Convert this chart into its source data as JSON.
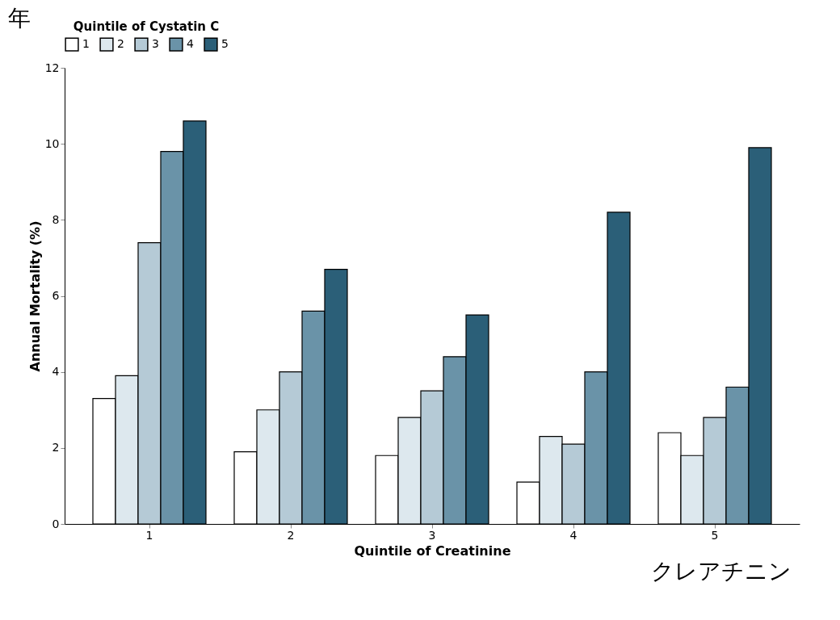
{
  "chart_data": {
    "type": "bar",
    "xlabel": "Quintile of Creatinine",
    "ylabel": "Annual Mortality (%)",
    "legend_title": "Quintile of Cystatin C",
    "legend": "top",
    "grid": false,
    "categories": [
      "1",
      "2",
      "3",
      "4",
      "5"
    ],
    "series": [
      {
        "name": "1",
        "color": "#ffffff",
        "values": [
          3.3,
          1.9,
          1.8,
          1.1,
          2.4
        ]
      },
      {
        "name": "2",
        "color": "#dde8ee",
        "values": [
          3.9,
          3.0,
          2.8,
          2.3,
          1.8
        ]
      },
      {
        "name": "3",
        "color": "#b5cad6",
        "values": [
          7.4,
          4.0,
          3.5,
          2.1,
          2.8
        ]
      },
      {
        "name": "4",
        "color": "#6a93a8",
        "values": [
          9.8,
          5.6,
          4.4,
          4.0,
          3.6
        ]
      },
      {
        "name": "5",
        "color": "#2b5f78",
        "values": [
          10.6,
          6.7,
          5.5,
          8.2,
          9.9
        ]
      }
    ],
    "ylim": [
      0,
      12
    ],
    "yticks": [
      0,
      2,
      4,
      6,
      8,
      10,
      12
    ],
    "annotations": [
      "年",
      "クレアチニン"
    ]
  }
}
